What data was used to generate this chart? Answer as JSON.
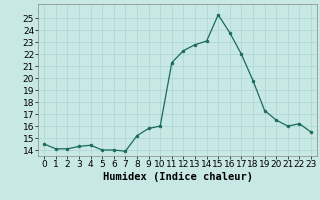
{
  "x": [
    0,
    1,
    2,
    3,
    4,
    5,
    6,
    7,
    8,
    9,
    10,
    11,
    12,
    13,
    14,
    15,
    16,
    17,
    18,
    19,
    20,
    21,
    22,
    23
  ],
  "y": [
    14.5,
    14.1,
    14.1,
    14.3,
    14.4,
    14.0,
    14.0,
    13.9,
    15.2,
    15.8,
    16.0,
    21.3,
    22.3,
    22.8,
    23.1,
    25.3,
    23.8,
    22.0,
    19.8,
    17.3,
    16.5,
    16.0,
    16.2,
    15.5
  ],
  "line_color": "#1a6b5a",
  "marker_color": "#1a6b5a",
  "bg_color": "#c8e8e5",
  "grid_color": "#b0d8d4",
  "xlabel": "Humidex (Indice chaleur)",
  "ylim": [
    13.5,
    26.2
  ],
  "xlim": [
    -0.5,
    23.5
  ],
  "yticks": [
    14,
    15,
    16,
    17,
    18,
    19,
    20,
    21,
    22,
    23,
    24,
    25
  ],
  "xticks": [
    0,
    1,
    2,
    3,
    4,
    5,
    6,
    7,
    8,
    9,
    10,
    11,
    12,
    13,
    14,
    15,
    16,
    17,
    18,
    19,
    20,
    21,
    22,
    23
  ],
  "tick_label_fontsize": 6.5,
  "xlabel_fontsize": 7.5
}
